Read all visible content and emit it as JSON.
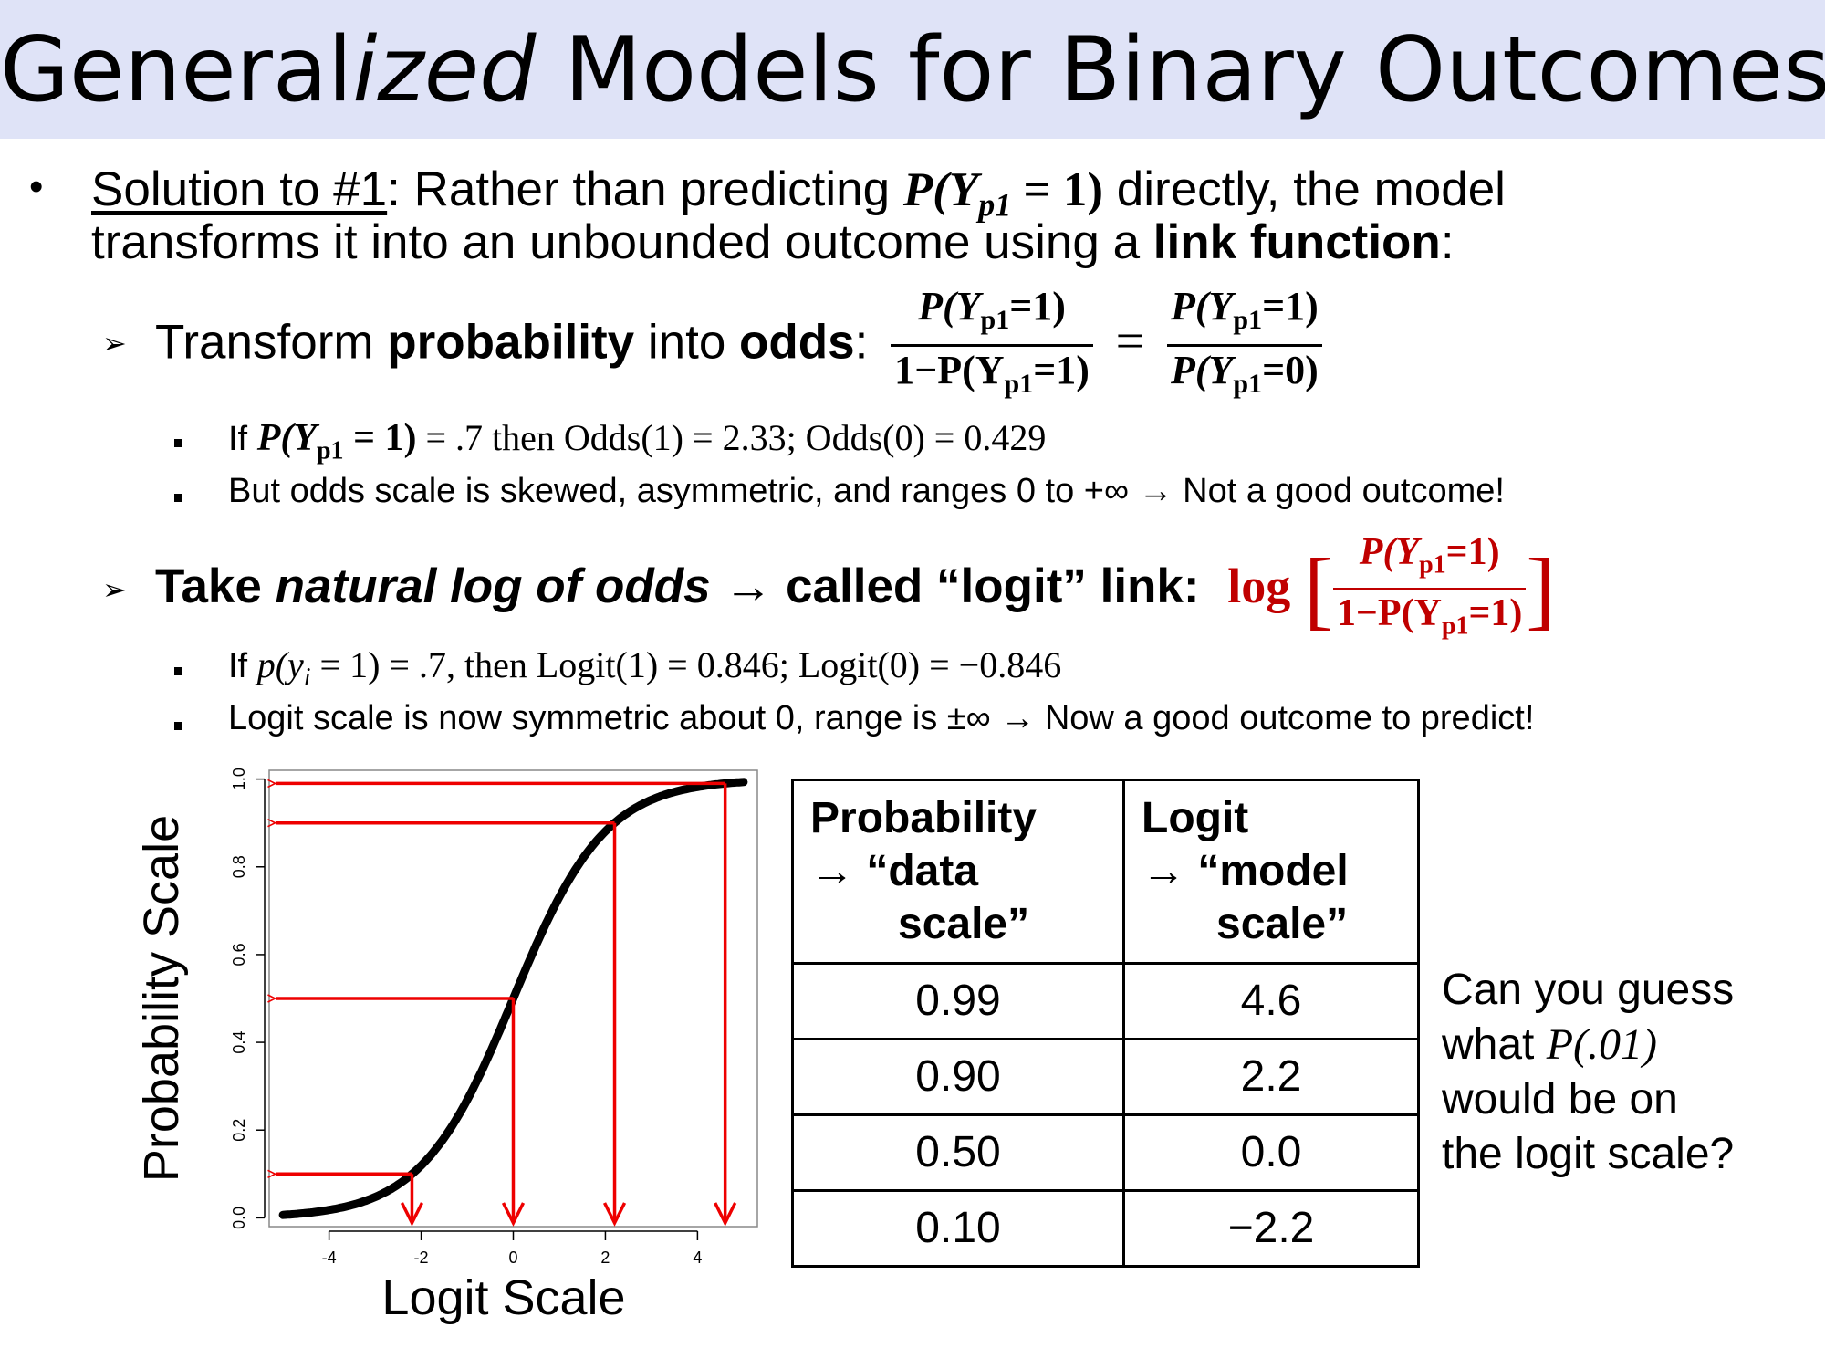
{
  "title": {
    "pre": "General",
    "italic": "ized",
    "post": " Models for Binary Outcomes"
  },
  "bullet1": {
    "line1_underline": "Solution to #1",
    "line1_text": ": Rather than predicting ",
    "p_expr_main": "P(Y",
    "p_expr_sub": "p1",
    "p_expr_rest": " = 1)",
    "line1_end": " directly, the model",
    "line2_text": "transforms it into an unbounded outcome using a ",
    "line2_bold": "link function",
    "line2_end": ":"
  },
  "bullet2": {
    "pre": "Transform ",
    "bold1": "probability",
    "mid": " into ",
    "bold2": "odds",
    "colon": ":",
    "frac1_num": "P(Y",
    "frac1_num_sub": "p1",
    "frac1_num_rest": "=1)",
    "frac1_den": "1−P(Y",
    "frac1_den_sub": "p1",
    "frac1_den_rest": "=1)",
    "equals": "=",
    "frac2_num": "P(Y",
    "frac2_num_sub": "p1",
    "frac2_num_rest": "=1)",
    "frac2_den": "P(Y",
    "frac2_den_sub": "p1",
    "frac2_den_rest": "=0)"
  },
  "sub1": {
    "if": "If ",
    "expr": "P(Y",
    "expr_sub": "p1",
    "expr_rest": " = 1)",
    "rest": " = .7 then Odds(1) = 2.33; Odds(0) = 0.429"
  },
  "sub2": {
    "text": "But odds scale is skewed, asymmetric, and ranges 0 to +∞ → Not a good outcome!"
  },
  "bullet3": {
    "text1": "Take ",
    "italic": "natural log of odds",
    "text2": " → called “logit” link:",
    "log": "log",
    "num": "P(Y",
    "num_sub": "p1",
    "num_rest": "=1)",
    "den": "1−P(Y",
    "den_sub": "p1",
    "den_rest": "=1)"
  },
  "sub3": {
    "if": "If ",
    "expr": "p(y",
    "expr_sub": "i",
    "expr_rest": " = 1) = .7,",
    "rest": " then Logit(1) = 0.846; Logit(0) = −0.846"
  },
  "sub4": {
    "text": "Logit scale is now symmetric about 0, range is ±∞ → Now a good outcome to predict!"
  },
  "chart_data": {
    "type": "line",
    "xlabel": "Logit Scale",
    "ylabel": "Probability Scale",
    "xlim": [
      -5.3,
      5.3
    ],
    "ylim": [
      -0.02,
      1.02
    ],
    "xticks": [
      -4,
      -2,
      0,
      2,
      4
    ],
    "yticks": [
      "0.0",
      "0.2",
      "0.4",
      "0.6",
      "0.8",
      "1.0"
    ],
    "curve_x_range": [
      -5,
      5
    ],
    "arrows": [
      {
        "logit": -2.2,
        "probability": 0.1
      },
      {
        "logit": 0.0,
        "probability": 0.5
      },
      {
        "logit": 2.2,
        "probability": 0.9
      },
      {
        "logit": 4.6,
        "probability": 0.99
      }
    ],
    "line_color": "#000000",
    "arrow_color": "#ee0000"
  },
  "table": {
    "header_prob": {
      "l1": "Probability",
      "l2": "→ “data",
      "l3": "scale”"
    },
    "header_logit": {
      "l1": "Logit",
      "l2": "→ “model",
      "l3": "scale”"
    },
    "rows": [
      {
        "p": "0.99",
        "logit": "4.6"
      },
      {
        "p": "0.90",
        "logit": "2.2"
      },
      {
        "p": "0.50",
        "logit": "0.0"
      },
      {
        "p": "0.10",
        "logit": "−2.2"
      }
    ]
  },
  "side_question": {
    "l1": "Can you guess",
    "l2a": "what ",
    "l2b": "P(.01)",
    "l3": "would be on",
    "l4": "the logit scale?"
  }
}
